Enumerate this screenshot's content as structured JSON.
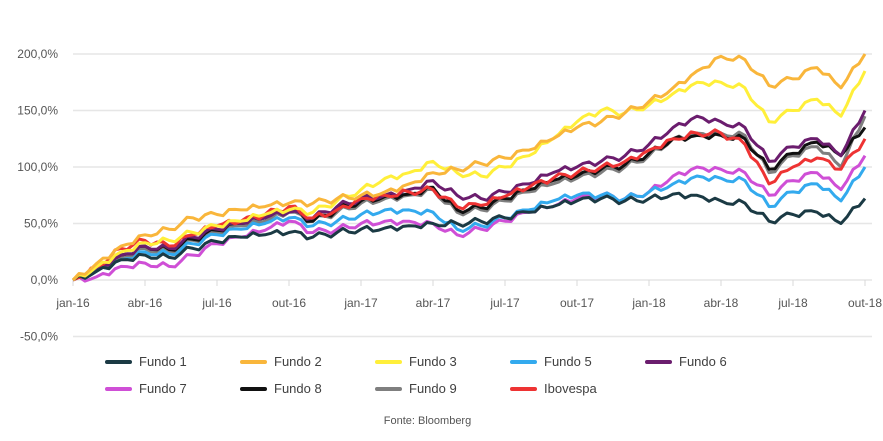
{
  "chart_data": {
    "type": "line",
    "title": "",
    "xlabel": "",
    "ylabel": "",
    "ylim": [
      -50,
      200
    ],
    "yticks": [
      -50,
      0,
      50,
      100,
      150,
      200
    ],
    "ytick_labels": [
      "-50,0%",
      "0,0%",
      "50,0%",
      "100,0%",
      "150,0%",
      "200,0%"
    ],
    "xtick_labels": [
      "jan-16",
      "abr-16",
      "jul-16",
      "out-16",
      "jan-17",
      "abr-17",
      "jul-17",
      "out-17",
      "jan-18",
      "abr-18",
      "jul-18",
      "out-18"
    ],
    "x_months_from_jan16": [
      0,
      1,
      2,
      3,
      4,
      5,
      6,
      7,
      8,
      9,
      10,
      11,
      12,
      13,
      14,
      15,
      16,
      17,
      18,
      19,
      20,
      21,
      22,
      23,
      24,
      25,
      26,
      27,
      28,
      29,
      30,
      31,
      32,
      33
    ],
    "grid": "horizontal",
    "legend_position": "bottom",
    "series": [
      {
        "name": "Fundo 9",
        "color": "#7f7f7f",
        "values": [
          0,
          8,
          20,
          28,
          25,
          35,
          42,
          48,
          52,
          60,
          52,
          60,
          68,
          72,
          75,
          80,
          60,
          62,
          70,
          78,
          85,
          90,
          95,
          100,
          110,
          125,
          130,
          130,
          128,
          95,
          110,
          118,
          100,
          145
        ]
      },
      {
        "name": "Fundo 8",
        "color": "#111111",
        "values": [
          0,
          10,
          22,
          30,
          27,
          36,
          44,
          50,
          55,
          62,
          52,
          62,
          70,
          74,
          76,
          82,
          62,
          64,
          72,
          80,
          88,
          92,
          98,
          102,
          112,
          125,
          128,
          128,
          125,
          98,
          112,
          122,
          110,
          135
        ]
      },
      {
        "name": "Fundo 6",
        "color": "#6b1d6e",
        "values": [
          0,
          10,
          22,
          30,
          28,
          38,
          45,
          50,
          55,
          60,
          55,
          65,
          72,
          75,
          80,
          88,
          75,
          72,
          78,
          85,
          95,
          100,
          105,
          110,
          120,
          135,
          145,
          140,
          135,
          105,
          118,
          125,
          110,
          150
        ]
      },
      {
        "name": "Fundo 7",
        "color": "#cf4fd6",
        "values": [
          0,
          3,
          12,
          15,
          12,
          22,
          32,
          38,
          44,
          52,
          42,
          45,
          50,
          52,
          52,
          50,
          40,
          45,
          52,
          60,
          65,
          72,
          75,
          72,
          78,
          92,
          100,
          98,
          95,
          75,
          88,
          95,
          80,
          110
        ]
      },
      {
        "name": "Fundo 5",
        "color": "#33aaee",
        "values": [
          0,
          8,
          18,
          25,
          23,
          32,
          40,
          45,
          50,
          55,
          48,
          52,
          58,
          62,
          62,
          60,
          45,
          48,
          55,
          62,
          70,
          75,
          75,
          72,
          78,
          85,
          92,
          90,
          88,
          65,
          78,
          85,
          70,
          100
        ]
      },
      {
        "name": "Ibovespa",
        "color": "#ee3333",
        "values": [
          0,
          12,
          28,
          35,
          30,
          40,
          48,
          52,
          58,
          65,
          55,
          62,
          72,
          75,
          78,
          80,
          65,
          66,
          74,
          82,
          90,
          95,
          100,
          105,
          115,
          125,
          130,
          130,
          120,
          85,
          100,
          108,
          98,
          125
        ]
      },
      {
        "name": "Fundo 1",
        "color": "#1b3a44",
        "values": [
          0,
          8,
          18,
          22,
          20,
          28,
          34,
          38,
          40,
          42,
          38,
          42,
          45,
          46,
          48,
          50,
          50,
          52,
          55,
          60,
          65,
          70,
          72,
          70,
          72,
          76,
          75,
          70,
          68,
          52,
          58,
          60,
          50,
          72
        ]
      },
      {
        "name": "Fundo 3",
        "color": "#ffef3a",
        "values": [
          0,
          12,
          25,
          33,
          35,
          42,
          48,
          52,
          58,
          62,
          60,
          70,
          80,
          90,
          95,
          105,
          95,
          92,
          100,
          110,
          125,
          140,
          150,
          148,
          155,
          165,
          175,
          175,
          170,
          140,
          150,
          160,
          145,
          185
        ]
      },
      {
        "name": "Fundo 2",
        "color": "#f9b63b",
        "values": [
          0,
          15,
          30,
          40,
          45,
          55,
          58,
          62,
          65,
          68,
          68,
          72,
          75,
          78,
          85,
          95,
          98,
          103,
          108,
          115,
          125,
          135,
          140,
          148,
          158,
          170,
          185,
          198,
          195,
          172,
          178,
          188,
          170,
          200
        ]
      }
    ]
  },
  "legend": [
    {
      "label": "Fundo 1",
      "color": "#1b3a44"
    },
    {
      "label": "Fundo 2",
      "color": "#f9b63b"
    },
    {
      "label": "Fundo 3",
      "color": "#ffef3a"
    },
    {
      "label": "Fundo 5",
      "color": "#33aaee"
    },
    {
      "label": "Fundo 6",
      "color": "#6b1d6e"
    },
    {
      "label": "Fundo 7",
      "color": "#cf4fd6"
    },
    {
      "label": "Fundo 8",
      "color": "#111111"
    },
    {
      "label": "Fundo 9",
      "color": "#7f7f7f"
    },
    {
      "label": "Ibovespa",
      "color": "#ee3333"
    }
  ],
  "source": "Fonte: Bloomberg"
}
